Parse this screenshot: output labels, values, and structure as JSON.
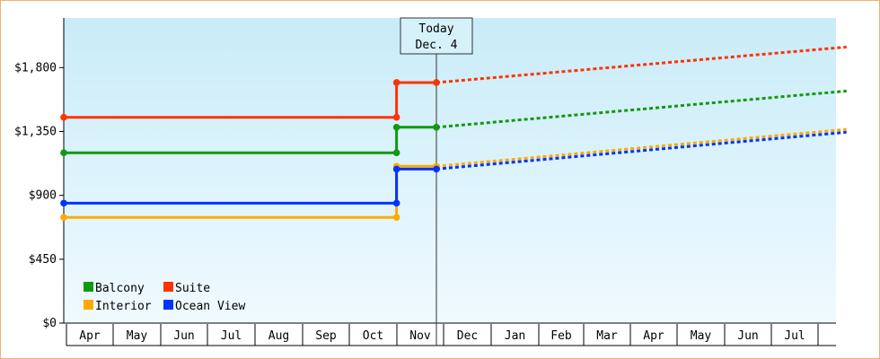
{
  "chart_data": {
    "type": "line",
    "ylim": [
      0,
      2150
    ],
    "y_ticks": [
      0,
      450,
      900,
      1350,
      1800
    ],
    "y_tick_labels": [
      "$0",
      "$450",
      "$900",
      "$1,350",
      "$1,800"
    ],
    "months": [
      "Apr",
      "May",
      "Jun",
      "Jul",
      "Aug",
      "Sep",
      "Oct",
      "Nov",
      "Dec",
      "Jan",
      "Feb",
      "Mar",
      "Apr",
      "May",
      "Jun",
      "Jul"
    ],
    "today": {
      "line1": "Today",
      "line2": "Dec. 4"
    },
    "series": [
      {
        "name": "Suite",
        "color": "#ff3300",
        "history": [
          [
            0,
            1450
          ],
          [
            7.1,
            1450
          ],
          [
            7.1,
            1695
          ],
          [
            7.95,
            1695
          ]
        ],
        "forecast": [
          [
            7.95,
            1695
          ],
          [
            16.7,
            1945
          ]
        ]
      },
      {
        "name": "Balcony",
        "color": "#119911",
        "history": [
          [
            0,
            1200
          ],
          [
            7.1,
            1200
          ],
          [
            7.1,
            1380
          ],
          [
            7.95,
            1380
          ]
        ],
        "forecast": [
          [
            7.95,
            1380
          ],
          [
            16.7,
            1635
          ]
        ]
      },
      {
        "name": "Interior",
        "color": "#ffaa00",
        "history": [
          [
            0,
            745
          ],
          [
            7.1,
            745
          ],
          [
            7.1,
            1105
          ],
          [
            7.95,
            1105
          ]
        ],
        "forecast": [
          [
            7.95,
            1105
          ],
          [
            16.7,
            1365
          ]
        ]
      },
      {
        "name": "Ocean View",
        "color": "#0033ff",
        "history": [
          [
            0,
            845
          ],
          [
            7.1,
            845
          ],
          [
            7.1,
            1085
          ],
          [
            7.95,
            1085
          ]
        ],
        "forecast": [
          [
            7.95,
            1085
          ],
          [
            16.7,
            1345
          ]
        ]
      }
    ],
    "legend": [
      {
        "name": "Balcony",
        "color": "#119911"
      },
      {
        "name": "Suite",
        "color": "#ff3300"
      },
      {
        "name": "Interior",
        "color": "#ffaa00"
      },
      {
        "name": "Ocean View",
        "color": "#0033ff"
      }
    ],
    "legend_position": "bottom-left",
    "grid": false
  }
}
